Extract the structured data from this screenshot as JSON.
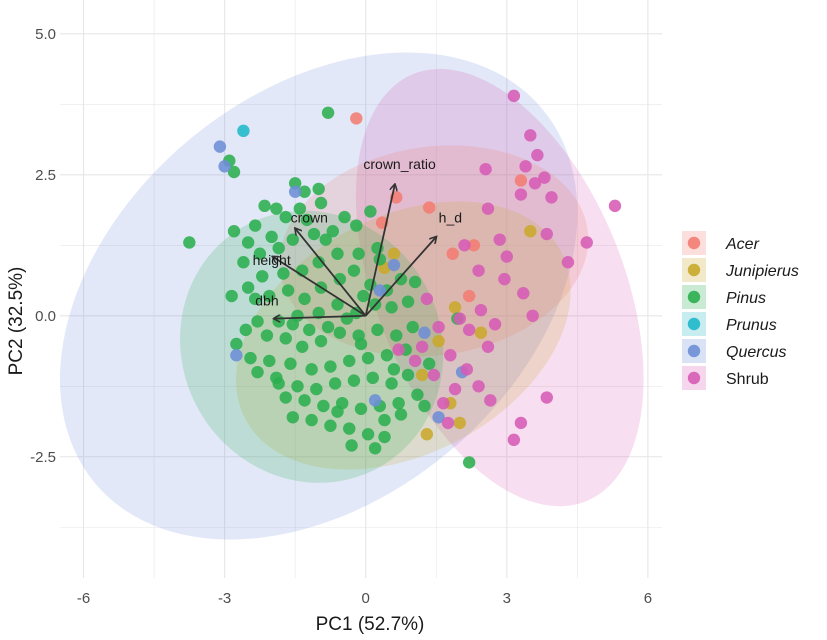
{
  "chart_data": {
    "type": "scatter",
    "subtype": "pca-biplot",
    "xlabel": "PC1 (52.7%)",
    "ylabel": "PC2 (32.5%)",
    "xlim": [
      -6.5,
      6.3
    ],
    "ylim": [
      -4.65,
      5.6
    ],
    "xticks": [
      -6,
      -3,
      0,
      3,
      6
    ],
    "xtick_labels": [
      "-6",
      "-3",
      "0",
      "3",
      "6"
    ],
    "yticks": [
      -2.5,
      0,
      2.5,
      5
    ],
    "ytick_labels": [
      "-2.5",
      "0.0",
      "2.5",
      "5.0"
    ],
    "grid": true,
    "legend_position": "right",
    "colors": {
      "Acer": "#F27C72",
      "Junipierus": "#C9A82B",
      "Pinus": "#2BAE4F",
      "Prunus": "#1FB7C9",
      "Quercus": "#6D8ED6",
      "Shrub": "#D65BB5",
      "arrow": "#333333",
      "grid": "#e6e6e6"
    },
    "legend": [
      {
        "key": "Acer",
        "label": "Acer",
        "italic": true
      },
      {
        "key": "Junipierus",
        "label": "Junipierus",
        "italic": true
      },
      {
        "key": "Pinus",
        "label": "Pinus",
        "italic": true
      },
      {
        "key": "Prunus",
        "label": "Prunus",
        "italic": true
      },
      {
        "key": "Quercus",
        "label": "Quercus",
        "italic": true
      },
      {
        "key": "Shrub",
        "label": "Shrub",
        "italic": false
      }
    ],
    "ellipses": [
      {
        "group": "Quercus",
        "cx": -1.0,
        "cy": 0.35,
        "rx": 6.2,
        "ry": 3.6,
        "angle": -40
      },
      {
        "group": "Shrub",
        "cx": 2.85,
        "cy": 0.5,
        "rx": 4.9,
        "ry": 2.2,
        "angle": 68
      },
      {
        "group": "Acer",
        "cx": 1.45,
        "cy": 1.15,
        "rx": 3.3,
        "ry": 1.85,
        "angle": -8
      },
      {
        "group": "Junipierus",
        "cx": 0.8,
        "cy": -0.35,
        "rx": 3.8,
        "ry": 2.1,
        "angle": -28
      },
      {
        "group": "Pinus",
        "cx": -1.15,
        "cy": -0.55,
        "rx": 2.75,
        "ry": 2.45,
        "angle": -30
      }
    ],
    "loadings": [
      {
        "name": "crown_ratio",
        "x": 0.62,
        "y": 2.33,
        "label_x": 0.72,
        "label_y": 2.6
      },
      {
        "name": "h_d",
        "x": 1.5,
        "y": 1.4,
        "label_x": 1.8,
        "label_y": 1.65
      },
      {
        "name": "crown",
        "x": -1.5,
        "y": 1.55,
        "label_x": -1.2,
        "label_y": 1.65
      },
      {
        "name": "height",
        "x": -1.98,
        "y": 1.05,
        "label_x": -2.0,
        "label_y": 0.9
      },
      {
        "name": "dbh",
        "x": -1.95,
        "y": -0.05,
        "label_x": -2.1,
        "label_y": 0.18
      }
    ],
    "series": [
      {
        "name": "Acer",
        "points": [
          [
            -0.2,
            3.5
          ],
          [
            1.35,
            1.92
          ],
          [
            0.65,
            2.1
          ],
          [
            0.35,
            1.65
          ],
          [
            2.3,
            1.25
          ],
          [
            2.2,
            0.35
          ],
          [
            3.3,
            2.4
          ],
          [
            1.85,
            1.1
          ]
        ]
      },
      {
        "name": "Junipierus",
        "points": [
          [
            3.5,
            1.5
          ],
          [
            2.45,
            -0.3
          ],
          [
            0.6,
            1.1
          ],
          [
            0.4,
            0.85
          ],
          [
            1.9,
            0.15
          ],
          [
            1.55,
            -0.45
          ],
          [
            1.2,
            -1.05
          ],
          [
            1.8,
            -1.55
          ],
          [
            1.3,
            -2.1
          ],
          [
            2.0,
            -1.9
          ]
        ]
      },
      {
        "name": "Pinus",
        "points": [
          [
            -0.8,
            3.6
          ],
          [
            -2.9,
            2.75
          ],
          [
            -2.8,
            2.55
          ],
          [
            -3.75,
            1.3
          ],
          [
            -1.5,
            2.35
          ],
          [
            -1.0,
            2.25
          ],
          [
            -0.95,
            2.0
          ],
          [
            -1.9,
            1.9
          ],
          [
            -1.3,
            2.2
          ],
          [
            -1.4,
            1.9
          ],
          [
            -1.7,
            1.75
          ],
          [
            -1.25,
            1.7
          ],
          [
            -2.15,
            1.95
          ],
          [
            -2.35,
            1.6
          ],
          [
            -2.8,
            1.5
          ],
          [
            -2.5,
            1.3
          ],
          [
            -2.25,
            1.1
          ],
          [
            -2.0,
            1.4
          ],
          [
            -1.85,
            1.2
          ],
          [
            -1.55,
            1.35
          ],
          [
            -1.1,
            1.45
          ],
          [
            -0.7,
            1.5
          ],
          [
            -0.45,
            1.75
          ],
          [
            -0.2,
            1.6
          ],
          [
            0.1,
            1.85
          ],
          [
            0.25,
            1.2
          ],
          [
            -0.15,
            1.1
          ],
          [
            -0.6,
            1.1
          ],
          [
            -1.0,
            0.95
          ],
          [
            -1.35,
            0.8
          ],
          [
            -1.75,
            0.75
          ],
          [
            -2.2,
            0.7
          ],
          [
            -2.5,
            0.5
          ],
          [
            -2.35,
            0.3
          ],
          [
            -2.05,
            0.35
          ],
          [
            -1.65,
            0.45
          ],
          [
            -1.3,
            0.3
          ],
          [
            -0.95,
            0.5
          ],
          [
            -0.55,
            0.65
          ],
          [
            -0.25,
            0.8
          ],
          [
            0.1,
            0.55
          ],
          [
            0.45,
            0.45
          ],
          [
            0.75,
            0.65
          ],
          [
            1.05,
            0.6
          ],
          [
            0.9,
            0.25
          ],
          [
            0.55,
            0.15
          ],
          [
            0.2,
            0.2
          ],
          [
            -0.2,
            0.05
          ],
          [
            -0.6,
            0.2
          ],
          [
            -1.0,
            0.05
          ],
          [
            -1.45,
            0.0
          ],
          [
            -1.85,
            -0.1
          ],
          [
            -2.3,
            -0.1
          ],
          [
            -2.55,
            -0.25
          ],
          [
            -2.1,
            -0.35
          ],
          [
            -1.7,
            -0.4
          ],
          [
            -1.35,
            -0.55
          ],
          [
            -0.95,
            -0.45
          ],
          [
            -0.55,
            -0.3
          ],
          [
            -0.15,
            -0.35
          ],
          [
            0.25,
            -0.25
          ],
          [
            0.65,
            -0.35
          ],
          [
            1.0,
            -0.2
          ],
          [
            0.85,
            -0.6
          ],
          [
            0.45,
            -0.7
          ],
          [
            0.05,
            -0.75
          ],
          [
            -0.35,
            -0.8
          ],
          [
            -0.75,
            -0.9
          ],
          [
            -1.15,
            -0.95
          ],
          [
            -1.6,
            -0.85
          ],
          [
            -2.05,
            -0.8
          ],
          [
            -2.45,
            -0.75
          ],
          [
            -2.75,
            -0.5
          ],
          [
            -2.3,
            -1.0
          ],
          [
            -1.85,
            -1.2
          ],
          [
            -1.45,
            -1.25
          ],
          [
            -1.05,
            -1.3
          ],
          [
            -0.65,
            -1.2
          ],
          [
            -0.25,
            -1.15
          ],
          [
            0.15,
            -1.1
          ],
          [
            0.55,
            -1.2
          ],
          [
            0.9,
            -1.05
          ],
          [
            1.1,
            -1.4
          ],
          [
            0.7,
            -1.55
          ],
          [
            0.3,
            -1.6
          ],
          [
            -0.1,
            -1.65
          ],
          [
            -0.5,
            -1.55
          ],
          [
            -0.9,
            -1.6
          ],
          [
            -1.3,
            -1.5
          ],
          [
            -1.7,
            -1.45
          ],
          [
            -1.55,
            -1.8
          ],
          [
            -1.15,
            -1.85
          ],
          [
            -0.75,
            -1.95
          ],
          [
            -0.35,
            -2.0
          ],
          [
            0.05,
            -2.1
          ],
          [
            -0.3,
            -2.3
          ],
          [
            0.2,
            -2.35
          ],
          [
            0.4,
            -1.85
          ],
          [
            0.75,
            -1.75
          ],
          [
            1.25,
            -1.6
          ],
          [
            2.2,
            -2.6
          ],
          [
            1.95,
            -0.05
          ],
          [
            0.4,
            -2.15
          ],
          [
            -0.1,
            -0.5
          ],
          [
            -0.4,
            -0.05
          ],
          [
            -0.8,
            -0.2
          ],
          [
            -1.2,
            -0.25
          ],
          [
            -1.55,
            -0.15
          ],
          [
            0.3,
            1.0
          ],
          [
            -0.05,
            0.35
          ],
          [
            0.6,
            -0.95
          ],
          [
            1.35,
            -0.85
          ],
          [
            -2.6,
            0.95
          ],
          [
            -1.9,
            -1.1
          ],
          [
            -0.6,
            -1.7
          ],
          [
            -2.85,
            0.35
          ],
          [
            -0.85,
            1.35
          ]
        ]
      },
      {
        "name": "Prunus",
        "points": [
          [
            -2.6,
            3.28
          ]
        ]
      },
      {
        "name": "Quercus",
        "points": [
          [
            -3.1,
            3.0
          ],
          [
            -3.0,
            2.65
          ],
          [
            -1.5,
            2.2
          ],
          [
            -2.75,
            -0.7
          ],
          [
            0.6,
            0.9
          ],
          [
            1.25,
            -0.3
          ],
          [
            0.2,
            -1.5
          ],
          [
            1.55,
            -1.8
          ],
          [
            2.05,
            -1.0
          ],
          [
            0.3,
            0.45
          ]
        ]
      },
      {
        "name": "Shrub",
        "points": [
          [
            3.15,
            3.9
          ],
          [
            3.5,
            3.2
          ],
          [
            3.65,
            2.85
          ],
          [
            3.4,
            2.65
          ],
          [
            3.8,
            2.45
          ],
          [
            3.6,
            2.35
          ],
          [
            2.55,
            2.6
          ],
          [
            3.3,
            2.15
          ],
          [
            3.95,
            2.1
          ],
          [
            5.3,
            1.95
          ],
          [
            2.6,
            1.9
          ],
          [
            3.85,
            1.45
          ],
          [
            2.85,
            1.35
          ],
          [
            4.7,
            1.3
          ],
          [
            2.1,
            1.25
          ],
          [
            3.0,
            1.05
          ],
          [
            4.3,
            0.95
          ],
          [
            2.4,
            0.8
          ],
          [
            2.95,
            0.65
          ],
          [
            3.35,
            0.4
          ],
          [
            2.45,
            0.1
          ],
          [
            3.55,
            0.0
          ],
          [
            2.0,
            -0.05
          ],
          [
            2.2,
            -0.25
          ],
          [
            1.55,
            -0.2
          ],
          [
            2.6,
            -0.55
          ],
          [
            1.2,
            -0.55
          ],
          [
            1.8,
            -0.7
          ],
          [
            2.15,
            -0.95
          ],
          [
            1.45,
            -1.05
          ],
          [
            2.4,
            -1.25
          ],
          [
            1.9,
            -1.3
          ],
          [
            2.65,
            -1.5
          ],
          [
            3.85,
            -1.45
          ],
          [
            1.75,
            -1.9
          ],
          [
            3.3,
            -1.9
          ],
          [
            3.15,
            -2.2
          ],
          [
            0.7,
            -0.6
          ],
          [
            1.05,
            -0.8
          ],
          [
            1.65,
            -1.55
          ],
          [
            1.3,
            0.3
          ],
          [
            2.75,
            -0.15
          ]
        ]
      }
    ]
  }
}
